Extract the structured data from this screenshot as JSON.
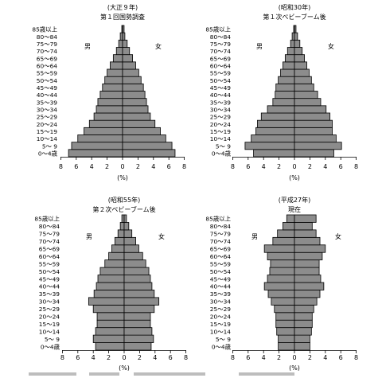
{
  "chart_data": [
    {
      "type": "bar",
      "title": "(大正９年)",
      "subtitle": "第１回国勢調査",
      "xlabel": "(%)",
      "xticks": [
        "8",
        "6",
        "4",
        "2",
        "0",
        "2",
        "4",
        "6",
        "8"
      ],
      "xlim": [
        -8,
        8
      ],
      "left_label": "男",
      "right_label": "女",
      "categories": [
        "0～4歳",
        "5～ 9",
        "10～14",
        "15～19",
        "20～24",
        "25～29",
        "30～34",
        "35～39",
        "40～44",
        "45～49",
        "50～54",
        "55～59",
        "60～64",
        "65～69",
        "70～74",
        "75～79",
        "80～84",
        "85歳以上"
      ],
      "series": [
        {
          "name": "男",
          "values": [
            7.0,
            6.6,
            5.8,
            5.0,
            4.3,
            3.7,
            3.4,
            3.2,
            2.9,
            2.6,
            2.3,
            2.0,
            1.6,
            1.2,
            0.8,
            0.5,
            0.3,
            0.1
          ]
        },
        {
          "name": "女",
          "values": [
            6.8,
            6.4,
            5.6,
            4.9,
            4.2,
            3.6,
            3.3,
            3.1,
            2.9,
            2.7,
            2.4,
            2.1,
            1.7,
            1.3,
            0.9,
            0.6,
            0.3,
            0.2
          ]
        }
      ]
    },
    {
      "type": "bar",
      "title": "(昭和30年)",
      "subtitle": "第１次ベビーブーム後",
      "xlabel": "(%)",
      "xticks": [
        "8",
        "6",
        "4",
        "2",
        "0",
        "2",
        "4",
        "6",
        "8"
      ],
      "xlim": [
        -8,
        8
      ],
      "left_label": "男",
      "right_label": "女",
      "categories": [
        "0～4歳",
        "5～ 9",
        "10～14",
        "15～19",
        "20～24",
        "25～29",
        "30～34",
        "35～39",
        "40～44",
        "45～49",
        "50～54",
        "55～59",
        "60～64",
        "65～69",
        "70～74",
        "75～79",
        "80～84",
        "85歳以上"
      ],
      "series": [
        {
          "name": "男",
          "values": [
            5.3,
            6.4,
            5.6,
            5.0,
            4.8,
            4.3,
            3.5,
            2.8,
            2.5,
            2.4,
            2.1,
            1.8,
            1.5,
            1.2,
            0.9,
            0.5,
            0.3,
            0.1
          ]
        },
        {
          "name": "女",
          "values": [
            5.1,
            6.1,
            5.4,
            4.9,
            4.9,
            4.6,
            4.1,
            3.4,
            3.0,
            2.5,
            2.2,
            1.9,
            1.6,
            1.3,
            1.0,
            0.7,
            0.4,
            0.2
          ]
        }
      ]
    },
    {
      "type": "bar",
      "title": "(昭和55年)",
      "subtitle": "第２次ベビーブーム後",
      "xlabel": "(%)",
      "xticks": [
        "8",
        "6",
        "4",
        "2",
        "0",
        "2",
        "4",
        "6",
        "8"
      ],
      "xlim": [
        -8,
        8
      ],
      "left_label": "男",
      "right_label": "女",
      "categories": [
        "0～4歳",
        "5～ 9",
        "10～14",
        "15～19",
        "20～24",
        "25～29",
        "30～34",
        "35～39",
        "40～44",
        "45～49",
        "50～54",
        "55～59",
        "60～64",
        "65～69",
        "70～74",
        "75～79",
        "80～84",
        "85歳以上"
      ],
      "series": [
        {
          "name": "男",
          "values": [
            3.7,
            4.0,
            3.7,
            3.5,
            3.5,
            4.0,
            4.6,
            3.9,
            3.6,
            3.4,
            3.1,
            2.5,
            2.0,
            1.6,
            1.2,
            0.8,
            0.5,
            0.3
          ]
        },
        {
          "name": "女",
          "values": [
            3.5,
            3.8,
            3.6,
            3.4,
            3.4,
            3.9,
            4.5,
            3.9,
            3.6,
            3.4,
            3.2,
            2.8,
            2.4,
            1.9,
            1.5,
            1.0,
            0.6,
            0.3
          ]
        }
      ]
    },
    {
      "type": "bar",
      "title": "(平成27年)",
      "subtitle": "現在",
      "xlabel": "(%)",
      "xticks": [
        "8",
        "6",
        "4",
        "2",
        "0",
        "2",
        "4",
        "6",
        "8"
      ],
      "xlim": [
        -8,
        8
      ],
      "left_label": "男",
      "right_label": "女",
      "categories": [
        "0～4歳",
        "5～ 9",
        "10～14",
        "15～19",
        "20～24",
        "25～29",
        "30～34",
        "35～39",
        "40～44",
        "45～49",
        "50～54",
        "55～59",
        "60～64",
        "65～69",
        "70～74",
        "75～79",
        "80～84",
        "85歳以上"
      ],
      "series": [
        {
          "name": "男",
          "values": [
            2.1,
            2.1,
            2.3,
            2.4,
            2.4,
            2.6,
            3.0,
            3.4,
            3.9,
            3.5,
            3.2,
            3.1,
            3.5,
            3.9,
            2.8,
            2.2,
            1.5,
            1.0
          ]
        },
        {
          "name": "女",
          "values": [
            2.0,
            2.0,
            2.2,
            2.3,
            2.3,
            2.5,
            2.9,
            3.3,
            3.8,
            3.4,
            3.2,
            3.2,
            3.6,
            4.0,
            3.3,
            2.8,
            2.3,
            2.8
          ]
        }
      ]
    }
  ]
}
